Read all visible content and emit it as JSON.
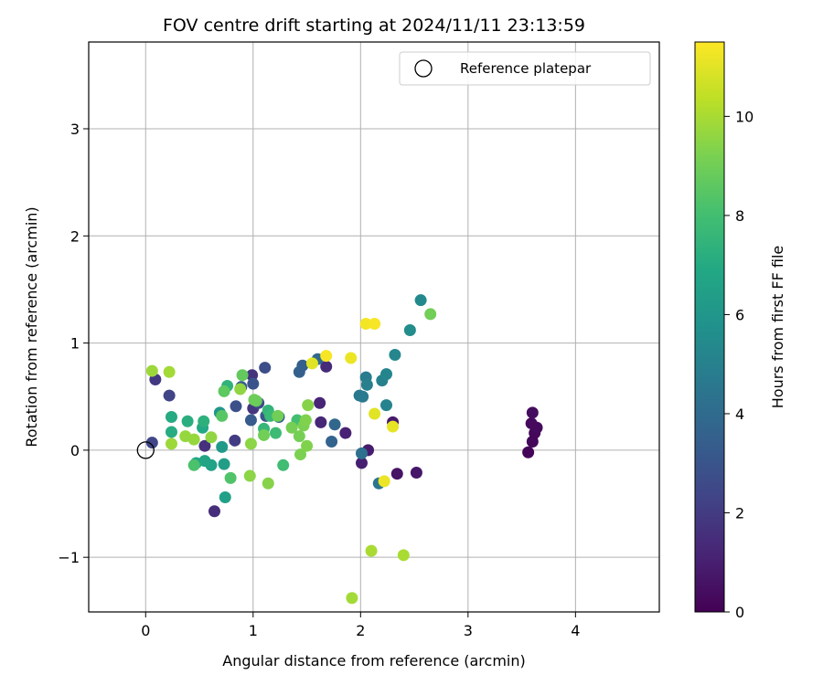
{
  "chart_data": {
    "type": "scatter",
    "title": "FOV centre drift starting at 2024/11/11 23:13:59",
    "xlabel": "Angular distance from reference (arcmin)",
    "ylabel": "Rotation from reference (arcmin)",
    "xlim": [
      -0.53,
      4.78
    ],
    "ylim": [
      -1.51,
      3.81
    ],
    "xticks": [
      0,
      1,
      2,
      3,
      4
    ],
    "yticks": [
      -1,
      0,
      1,
      2,
      3
    ],
    "xtick_labels": [
      "0",
      "1",
      "2",
      "3",
      "4"
    ],
    "ytick_labels": [
      "−1",
      "0",
      "1",
      "2",
      "3"
    ],
    "grid": true,
    "legend": {
      "position": "top-right",
      "entries": [
        {
          "label": "Reference platepar",
          "marker": "open-circle"
        }
      ]
    },
    "reference_point": {
      "x": 0.0,
      "y": 0.0
    },
    "colorbar": {
      "label": "Hours from first FF file",
      "range": [
        0,
        11.5
      ],
      "ticks": [
        0,
        2,
        4,
        6,
        8,
        10
      ],
      "tick_labels": [
        "0",
        "2",
        "4",
        "6",
        "8",
        "10"
      ],
      "colormap": "viridis"
    },
    "points": [
      {
        "x": 3.56,
        "y": -0.02,
        "h": 0.1
      },
      {
        "x": 3.6,
        "y": 0.08,
        "h": 0.2
      },
      {
        "x": 3.62,
        "y": 0.16,
        "h": 0.2
      },
      {
        "x": 3.64,
        "y": 0.21,
        "h": 0.3
      },
      {
        "x": 3.59,
        "y": 0.25,
        "h": 0.3
      },
      {
        "x": 3.6,
        "y": 0.35,
        "h": 0.4
      },
      {
        "x": 2.34,
        "y": -0.22,
        "h": 0.6
      },
      {
        "x": 2.52,
        "y": -0.21,
        "h": 0.7
      },
      {
        "x": 2.3,
        "y": 0.26,
        "h": 0.8
      },
      {
        "x": 2.07,
        "y": 0.0,
        "h": 0.9
      },
      {
        "x": 2.01,
        "y": -0.12,
        "h": 1.0
      },
      {
        "x": 1.86,
        "y": 0.16,
        "h": 1.1
      },
      {
        "x": 1.62,
        "y": 0.44,
        "h": 1.2
      },
      {
        "x": 1.63,
        "y": 0.26,
        "h": 1.3
      },
      {
        "x": 1.68,
        "y": 0.78,
        "h": 1.4
      },
      {
        "x": 0.64,
        "y": -0.57,
        "h": 1.5
      },
      {
        "x": 0.55,
        "y": 0.04,
        "h": 1.6
      },
      {
        "x": 0.99,
        "y": 0.7,
        "h": 1.7
      },
      {
        "x": 1.0,
        "y": 0.39,
        "h": 1.8
      },
      {
        "x": 0.09,
        "y": 0.66,
        "h": 1.9
      },
      {
        "x": 0.83,
        "y": 0.09,
        "h": 2.0
      },
      {
        "x": 0.22,
        "y": 0.51,
        "h": 2.3
      },
      {
        "x": 0.06,
        "y": 0.07,
        "h": 2.4
      },
      {
        "x": 1.05,
        "y": 0.44,
        "h": 2.5
      },
      {
        "x": 1.11,
        "y": 0.77,
        "h": 2.7
      },
      {
        "x": 0.84,
        "y": 0.41,
        "h": 2.8
      },
      {
        "x": 1.0,
        "y": 0.62,
        "h": 3.0
      },
      {
        "x": 1.12,
        "y": 0.32,
        "h": 3.1
      },
      {
        "x": 0.89,
        "y": 0.59,
        "h": 3.2
      },
      {
        "x": 0.98,
        "y": 0.28,
        "h": 3.3
      },
      {
        "x": 1.46,
        "y": 0.79,
        "h": 3.4
      },
      {
        "x": 1.43,
        "y": 0.73,
        "h": 3.5
      },
      {
        "x": 1.24,
        "y": 0.31,
        "h": 3.6
      },
      {
        "x": 1.73,
        "y": 0.08,
        "h": 3.7
      },
      {
        "x": 1.76,
        "y": 0.24,
        "h": 3.8
      },
      {
        "x": 1.6,
        "y": 0.85,
        "h": 3.9
      },
      {
        "x": 2.01,
        "y": -0.03,
        "h": 4.3
      },
      {
        "x": 2.17,
        "y": -0.31,
        "h": 4.5
      },
      {
        "x": 1.99,
        "y": 0.51,
        "h": 4.6
      },
      {
        "x": 2.02,
        "y": 0.5,
        "h": 4.7
      },
      {
        "x": 2.05,
        "y": 0.68,
        "h": 4.8
      },
      {
        "x": 2.06,
        "y": 0.61,
        "h": 4.9
      },
      {
        "x": 2.2,
        "y": 0.65,
        "h": 5.0
      },
      {
        "x": 2.24,
        "y": 0.42,
        "h": 5.1
      },
      {
        "x": 2.24,
        "y": 0.71,
        "h": 5.2
      },
      {
        "x": 2.32,
        "y": 0.89,
        "h": 5.3
      },
      {
        "x": 2.56,
        "y": 1.4,
        "h": 5.4
      },
      {
        "x": 2.46,
        "y": 1.12,
        "h": 5.5
      },
      {
        "x": 0.69,
        "y": 0.35,
        "h": 6.0
      },
      {
        "x": 0.71,
        "y": 0.03,
        "h": 6.2
      },
      {
        "x": 0.73,
        "y": -0.13,
        "h": 6.4
      },
      {
        "x": 0.74,
        "y": -0.44,
        "h": 6.5
      },
      {
        "x": 0.61,
        "y": -0.14,
        "h": 6.6
      },
      {
        "x": 0.55,
        "y": -0.1,
        "h": 6.7
      },
      {
        "x": 0.47,
        "y": -0.12,
        "h": 6.8
      },
      {
        "x": 0.53,
        "y": 0.21,
        "h": 6.9
      },
      {
        "x": 0.24,
        "y": 0.31,
        "h": 7.0
      },
      {
        "x": 0.24,
        "y": 0.17,
        "h": 7.1
      },
      {
        "x": 0.39,
        "y": 0.27,
        "h": 7.2
      },
      {
        "x": 0.54,
        "y": 0.27,
        "h": 7.3
      },
      {
        "x": 0.76,
        "y": 0.6,
        "h": 7.4
      },
      {
        "x": 1.14,
        "y": 0.37,
        "h": 7.5
      },
      {
        "x": 1.1,
        "y": 0.2,
        "h": 7.6
      },
      {
        "x": 1.16,
        "y": 0.32,
        "h": 7.7
      },
      {
        "x": 1.21,
        "y": 0.16,
        "h": 7.8
      },
      {
        "x": 1.28,
        "y": -0.14,
        "h": 7.9
      },
      {
        "x": 1.41,
        "y": 0.28,
        "h": 8.0
      },
      {
        "x": 0.45,
        "y": -0.14,
        "h": 8.2
      },
      {
        "x": 0.79,
        "y": -0.26,
        "h": 8.3
      },
      {
        "x": 0.71,
        "y": 0.32,
        "h": 8.5
      },
      {
        "x": 0.73,
        "y": 0.55,
        "h": 8.6
      },
      {
        "x": 0.9,
        "y": 0.7,
        "h": 8.7
      },
      {
        "x": 1.03,
        "y": 0.46,
        "h": 8.8
      },
      {
        "x": 1.01,
        "y": 0.47,
        "h": 8.9
      },
      {
        "x": 1.1,
        "y": 0.14,
        "h": 9.0
      },
      {
        "x": 1.23,
        "y": 0.32,
        "h": 9.0
      },
      {
        "x": 1.36,
        "y": 0.21,
        "h": 9.1
      },
      {
        "x": 1.43,
        "y": 0.13,
        "h": 9.1
      },
      {
        "x": 1.44,
        "y": -0.04,
        "h": 9.2
      },
      {
        "x": 1.47,
        "y": 0.23,
        "h": 9.2
      },
      {
        "x": 1.49,
        "y": 0.28,
        "h": 9.3
      },
      {
        "x": 1.5,
        "y": 0.04,
        "h": 9.3
      },
      {
        "x": 1.51,
        "y": 0.42,
        "h": 9.4
      },
      {
        "x": 1.14,
        "y": -0.31,
        "h": 9.4
      },
      {
        "x": 0.97,
        "y": -0.24,
        "h": 9.5
      },
      {
        "x": 0.98,
        "y": 0.06,
        "h": 9.5
      },
      {
        "x": 0.88,
        "y": 0.57,
        "h": 9.6
      },
      {
        "x": 0.61,
        "y": 0.12,
        "h": 9.6
      },
      {
        "x": 0.45,
        "y": 0.1,
        "h": 9.7
      },
      {
        "x": 0.37,
        "y": 0.13,
        "h": 9.7
      },
      {
        "x": 0.24,
        "y": 0.06,
        "h": 9.8
      },
      {
        "x": 0.06,
        "y": 0.74,
        "h": 9.8
      },
      {
        "x": 0.22,
        "y": 0.73,
        "h": 9.9
      },
      {
        "x": 1.92,
        "y": -1.38,
        "h": 9.9
      },
      {
        "x": 2.1,
        "y": -0.94,
        "h": 10.0
      },
      {
        "x": 2.4,
        "y": -0.98,
        "h": 10.0
      },
      {
        "x": 2.65,
        "y": 1.27,
        "h": 9.0
      },
      {
        "x": 1.55,
        "y": 0.81,
        "h": 11.0
      },
      {
        "x": 1.68,
        "y": 0.88,
        "h": 11.4
      },
      {
        "x": 1.91,
        "y": 0.86,
        "h": 11.2
      },
      {
        "x": 2.05,
        "y": 1.18,
        "h": 11.3
      },
      {
        "x": 2.13,
        "y": 1.18,
        "h": 11.4
      },
      {
        "x": 2.13,
        "y": 0.34,
        "h": 11.0
      },
      {
        "x": 2.22,
        "y": -0.29,
        "h": 11.2
      },
      {
        "x": 2.3,
        "y": 0.22,
        "h": 11.1
      }
    ]
  }
}
